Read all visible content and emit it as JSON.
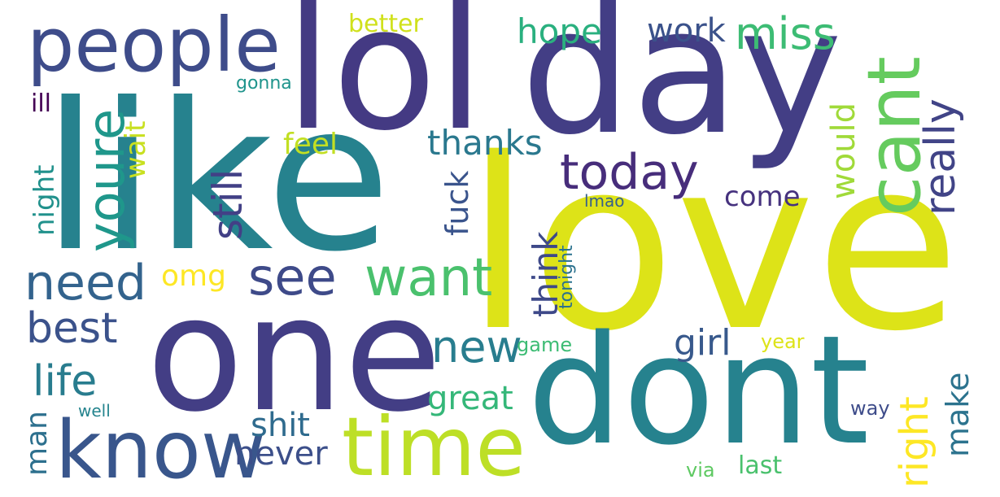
{
  "background": "#ffffff",
  "words": [
    {
      "id": "like",
      "text": "like",
      "color": "#26828e"
    },
    {
      "id": "love",
      "text": "love",
      "color": "#dde318"
    },
    {
      "id": "lol",
      "text": "lol",
      "color": "#443a83"
    },
    {
      "id": "day",
      "text": "day",
      "color": "#433e85"
    },
    {
      "id": "one",
      "text": "one",
      "color": "#433e85"
    },
    {
      "id": "dont",
      "text": "dont",
      "color": "#26828e"
    },
    {
      "id": "time",
      "text": "time",
      "color": "#bddf26"
    },
    {
      "id": "know",
      "text": "know",
      "color": "#39568c"
    },
    {
      "id": "people",
      "text": "people",
      "color": "#3e4c8a"
    },
    {
      "id": "cant",
      "text": "cant",
      "color": "#65cb5e"
    },
    {
      "id": "today",
      "text": "today",
      "color": "#472d7b"
    },
    {
      "id": "want",
      "text": "want",
      "color": "#4ac16d"
    },
    {
      "id": "need",
      "text": "need",
      "color": "#33638d"
    },
    {
      "id": "youre",
      "text": "youre",
      "color": "#1f978b"
    },
    {
      "id": "see",
      "text": "see",
      "color": "#3e4a89"
    },
    {
      "id": "still",
      "text": "still",
      "color": "#424086"
    },
    {
      "id": "really",
      "text": "really",
      "color": "#414487"
    },
    {
      "id": "miss",
      "text": "miss",
      "color": "#3dbc74"
    },
    {
      "id": "best",
      "text": "best",
      "color": "#3b528b"
    },
    {
      "id": "life",
      "text": "life",
      "color": "#287c8e"
    },
    {
      "id": "new",
      "text": "new",
      "color": "#287d8e"
    },
    {
      "id": "right",
      "text": "right",
      "color": "#fde725"
    },
    {
      "id": "make",
      "text": "make",
      "color": "#2c738e"
    },
    {
      "id": "thanks",
      "text": "thanks",
      "color": "#2a788e"
    },
    {
      "id": "think",
      "text": "think",
      "color": "#3e4989"
    },
    {
      "id": "hope",
      "text": "hope",
      "color": "#2ab07f"
    },
    {
      "id": "work",
      "text": "work",
      "color": "#3b528b"
    },
    {
      "id": "would",
      "text": "would",
      "color": "#a0da39"
    },
    {
      "id": "girl",
      "text": "girl",
      "color": "#38598c"
    },
    {
      "id": "great",
      "text": "great",
      "color": "#35b779"
    },
    {
      "id": "shit",
      "text": "shit",
      "color": "#2f6b8e"
    },
    {
      "id": "never",
      "text": "never",
      "color": "#3c4f8a"
    },
    {
      "id": "man",
      "text": "man",
      "color": "#2d708e"
    },
    {
      "id": "fuck",
      "text": "fuck",
      "color": "#3a548c"
    },
    {
      "id": "come",
      "text": "come",
      "color": "#46327e"
    },
    {
      "id": "feel",
      "text": "feel",
      "color": "#c2df23"
    },
    {
      "id": "omg",
      "text": "omg",
      "color": "#fde725"
    },
    {
      "id": "night",
      "text": "night",
      "color": "#21918c"
    },
    {
      "id": "wait",
      "text": "wait",
      "color": "#c8e020"
    },
    {
      "id": "ill",
      "text": "ill",
      "color": "#440154"
    },
    {
      "id": "better",
      "text": "better",
      "color": "#d0e11c"
    },
    {
      "id": "gonna",
      "text": "gonna",
      "color": "#1f948c"
    },
    {
      "id": "last",
      "text": "last",
      "color": "#4ac16d"
    },
    {
      "id": "via",
      "text": "via",
      "color": "#5ec962"
    },
    {
      "id": "way",
      "text": "way",
      "color": "#3e4c8a"
    },
    {
      "id": "year",
      "text": "year",
      "color": "#dde318"
    },
    {
      "id": "game",
      "text": "game",
      "color": "#3dbc74"
    },
    {
      "id": "well",
      "text": "well",
      "color": "#25848e"
    },
    {
      "id": "lmao",
      "text": "lmao",
      "color": "#355f8d"
    },
    {
      "id": "tonight",
      "text": "tonight",
      "color": "#2c728e"
    }
  ]
}
